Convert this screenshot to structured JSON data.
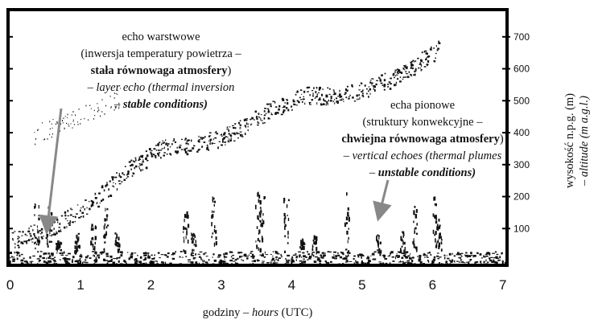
{
  "chart_data": {
    "type": "echogram",
    "xlim": [
      -0.03,
      7.06
    ],
    "xticks": [
      0,
      1,
      2,
      3,
      4,
      5,
      6,
      7
    ],
    "ylim": [
      -15,
      785
    ],
    "yticks": [
      100,
      200,
      300,
      400,
      500,
      600,
      700
    ],
    "xlabel": [
      {
        "text": "godziny – ",
        "style": "normal"
      },
      {
        "text": "hours",
        "style": "italic"
      },
      {
        "text": " (UTC)",
        "style": "normal"
      }
    ],
    "ylabel": [
      [
        {
          "text": "wysokość n.p.g. (m)",
          "style": "normal"
        }
      ],
      [
        {
          "text": "– altitude (m a.g.l.)",
          "style": "italic"
        }
      ]
    ],
    "annotations": [
      {
        "lines": [
          [
            {
              "text": "echo warstwowe",
              "style": "normal"
            }
          ],
          [
            {
              "text": "(inwersja temperatury powietrza –",
              "style": "normal"
            }
          ],
          [
            {
              "text": "stała równowaga atmosfery",
              "style": "bold"
            },
            {
              "text": ")",
              "style": "normal"
            }
          ],
          [
            {
              "text": "– layer echo (thermal inversion",
              "style": "italic"
            }
          ],
          [
            {
              "text": "– ",
              "style": "italic"
            },
            {
              "text": "stable conditions)",
              "style": "bold-italic"
            }
          ]
        ]
      },
      {
        "lines": [
          [
            {
              "text": "echa pionowe",
              "style": "normal"
            }
          ],
          [
            {
              "text": "(struktury konwekcyjne –",
              "style": "normal"
            }
          ],
          [
            {
              "text": "chwiejna równowaga atmosfery",
              "style": "bold"
            },
            {
              "text": ")",
              "style": "normal"
            }
          ],
          [
            {
              "text": "– vertical echoes (thermal plumes",
              "style": "italic"
            }
          ],
          [
            {
              "text": "– ",
              "style": "italic"
            },
            {
              "text": "unstable conditions)",
              "style": "bold-italic"
            }
          ]
        ]
      }
    ]
  }
}
